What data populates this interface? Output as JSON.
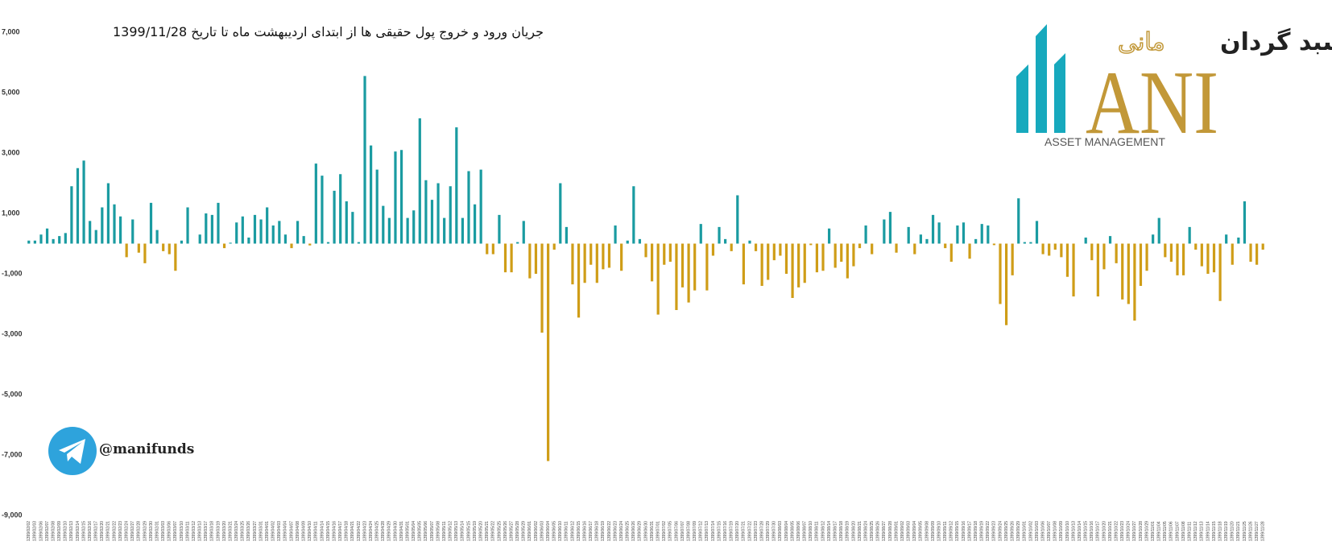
{
  "chart_data": {
    "type": "bar",
    "title": "جریان ورود و خروج پول حقیقی ها از ابتدای اردیبهشت ماه تا تاریخ 1399/11/28",
    "positive_color": "#1a9ba1",
    "negative_color": "#cf9d17",
    "ylim": [
      -9000,
      7000
    ],
    "yticks": [
      {
        "value": 7000,
        "label": "7,000"
      },
      {
        "value": 5000,
        "label": "5,000"
      },
      {
        "value": 3000,
        "label": "3,000"
      },
      {
        "value": 1000,
        "label": "1,000"
      },
      {
        "value": -1000,
        "label": "-1,000"
      },
      {
        "value": -3000,
        "label": "-3,000"
      },
      {
        "value": -5000,
        "label": "-5,000"
      },
      {
        "value": -7000,
        "label": "-7,000"
      },
      {
        "value": -9000,
        "label": "-9,000"
      }
    ],
    "categories": [
      "1399/02/02",
      "1399/02/03",
      "1399/02/06",
      "1399/02/07",
      "1399/02/08",
      "1399/02/09",
      "1399/02/10",
      "1399/02/13",
      "1399/02/14",
      "1399/02/15",
      "1399/02/16",
      "1399/02/17",
      "1399/02/20",
      "1399/02/21",
      "1399/02/22",
      "1399/02/23",
      "1399/02/24",
      "1399/02/27",
      "1399/02/28",
      "1399/02/29",
      "1399/02/30",
      "1399/02/31",
      "1399/03/03",
      "1399/03/06",
      "1399/03/07",
      "1399/03/10",
      "1399/03/11",
      "1399/03/12",
      "1399/03/13",
      "1399/03/17",
      "1399/03/18",
      "1399/03/19",
      "1399/03/20",
      "1399/03/21",
      "1399/03/24",
      "1399/03/25",
      "1399/03/26",
      "1399/03/27",
      "1399/03/31",
      "1399/04/01",
      "1399/04/02",
      "1399/04/03",
      "1399/04/04",
      "1399/04/07",
      "1399/04/08",
      "1399/04/09",
      "1399/04/10",
      "1399/04/11",
      "1399/04/14",
      "1399/04/15",
      "1399/04/16",
      "1399/04/17",
      "1399/04/18",
      "1399/04/21",
      "1399/04/22",
      "1399/04/23",
      "1399/04/24",
      "1399/04/25",
      "1399/04/28",
      "1399/04/29",
      "1399/04/30",
      "1399/04/31",
      "1399/05/01",
      "1399/05/04",
      "1399/05/05",
      "1399/05/06",
      "1399/05/07",
      "1399/05/08",
      "1399/05/11",
      "1399/05/12",
      "1399/05/13",
      "1399/05/14",
      "1399/05/15",
      "1399/05/19",
      "1399/05/20",
      "1399/05/21",
      "1399/05/22",
      "1399/05/25",
      "1399/05/26",
      "1399/05/27",
      "1399/05/28",
      "1399/05/29",
      "1399/06/01",
      "1399/06/02",
      "1399/06/03",
      "1399/06/04",
      "1399/06/05",
      "1399/06/10",
      "1399/06/11",
      "1399/06/12",
      "1399/06/15",
      "1399/06/16",
      "1399/06/17",
      "1399/06/18",
      "1399/06/19",
      "1399/06/22",
      "1399/06/23",
      "1399/06/24",
      "1399/06/25",
      "1399/06/26",
      "1399/06/29",
      "1399/06/30",
      "1399/06/31",
      "1399/07/01",
      "1399/07/02",
      "1399/07/05",
      "1399/07/06",
      "1399/07/07",
      "1399/07/08",
      "1399/07/09",
      "1399/07/12",
      "1399/07/13",
      "1399/07/14",
      "1399/07/15",
      "1399/07/16",
      "1399/07/19",
      "1399/07/20",
      "1399/07/21",
      "1399/07/22",
      "1399/07/23",
      "1399/07/28",
      "1399/07/29",
      "1399/07/30",
      "1399/08/03",
      "1399/08/04",
      "1399/08/05",
      "1399/08/06",
      "1399/08/07",
      "1399/08/10",
      "1399/08/11",
      "1399/08/12",
      "1399/08/14",
      "1399/08/17",
      "1399/08/18",
      "1399/08/19",
      "1399/08/20",
      "1399/08/21",
      "1399/08/24",
      "1399/08/25",
      "1399/08/26",
      "1399/08/27",
      "1399/08/28",
      "1399/09/01",
      "1399/09/02",
      "1399/09/03",
      "1399/09/04",
      "1399/09/05",
      "1399/09/08",
      "1399/09/09",
      "1399/09/10",
      "1399/09/11",
      "1399/09/12",
      "1399/09/15",
      "1399/09/16",
      "1399/09/17",
      "1399/09/18",
      "1399/09/19",
      "1399/09/22",
      "1399/09/23",
      "1399/09/24",
      "1399/09/25",
      "1399/09/26",
      "1399/09/29",
      "1399/10/01",
      "1399/10/02",
      "1399/10/03",
      "1399/10/06",
      "1399/10/07",
      "1399/10/08",
      "1399/10/09",
      "1399/10/10",
      "1399/10/13",
      "1399/10/14",
      "1399/10/15",
      "1399/10/16",
      "1399/10/17",
      "1399/10/20",
      "1399/10/21",
      "1399/10/22",
      "1399/10/23",
      "1399/10/24",
      "1399/10/27",
      "1399/10/28",
      "1399/10/29",
      "1399/11/01",
      "1399/11/04",
      "1399/11/05",
      "1399/11/06",
      "1399/11/07",
      "1399/11/08",
      "1399/11/11",
      "1399/11/12",
      "1399/11/13",
      "1399/11/14",
      "1399/11/15",
      "1399/11/18",
      "1399/11/19",
      "1399/11/20",
      "1399/11/21",
      "1399/11/25",
      "1399/11/26",
      "1399/11/27",
      "1399/11/28"
    ],
    "values": [
      100,
      100,
      300,
      500,
      150,
      250,
      350,
      1900,
      2500,
      2750,
      750,
      450,
      1200,
      2000,
      1300,
      900,
      -450,
      800,
      -300,
      -650,
      1350,
      450,
      -250,
      -350,
      -900,
      100,
      1200,
      0,
      300,
      1000,
      950,
      1350,
      -150,
      30,
      700,
      900,
      200,
      950,
      800,
      1200,
      600,
      750,
      300,
      -150,
      750,
      250,
      -60,
      2650,
      2250,
      50,
      1750,
      2300,
      1400,
      1050,
      50,
      5550,
      3250,
      2450,
      1250,
      850,
      3050,
      3100,
      850,
      1100,
      4150,
      2100,
      1450,
      2000,
      850,
      1900,
      3850,
      850,
      2400,
      1300,
      2450,
      -350,
      -350,
      950,
      -950,
      -950,
      50,
      750,
      -1150,
      -1000,
      -2950,
      -7200,
      -200,
      2000,
      550,
      -1350,
      -2450,
      -1300,
      -700,
      -1300,
      -850,
      -800,
      600,
      -900,
      100,
      1900,
      150,
      -450,
      -1250,
      -2350,
      -700,
      -600,
      -2200,
      -1450,
      -1950,
      -1550,
      650,
      -1550,
      -400,
      550,
      150,
      -250,
      1600,
      -1350,
      100,
      -250,
      -1400,
      -1200,
      -550,
      -400,
      -1000,
      -1800,
      -1450,
      -1300,
      -50,
      -950,
      -900,
      500,
      -800,
      -600,
      -1150,
      -750,
      -150,
      600,
      -350,
      0,
      800,
      1050,
      -300,
      0,
      550,
      -350,
      300,
      150,
      950,
      700,
      -150,
      -600,
      600,
      700,
      -500,
      150,
      650,
      600,
      -50,
      -2000,
      -2700,
      -1050,
      1500,
      50,
      50,
      750,
      -350,
      -400,
      -200,
      -450,
      -1100,
      -1750,
      0,
      200,
      -550,
      -1750,
      -850,
      250,
      -650,
      -1850,
      -2000,
      -2550,
      -1400,
      -900,
      300,
      850,
      -450,
      -600,
      -1050,
      -1050,
      550,
      -200,
      -750,
      -1000,
      -950,
      -1900,
      300,
      -700,
      200,
      1400,
      -600,
      -700,
      -200
    ]
  },
  "logo": {
    "name_black": "سبد گردان",
    "name_gold": "مانی",
    "wordmark": "ANI",
    "tagline": "ASSET MANAGEMENT"
  },
  "telegram": {
    "handle": "@manifunds"
  }
}
